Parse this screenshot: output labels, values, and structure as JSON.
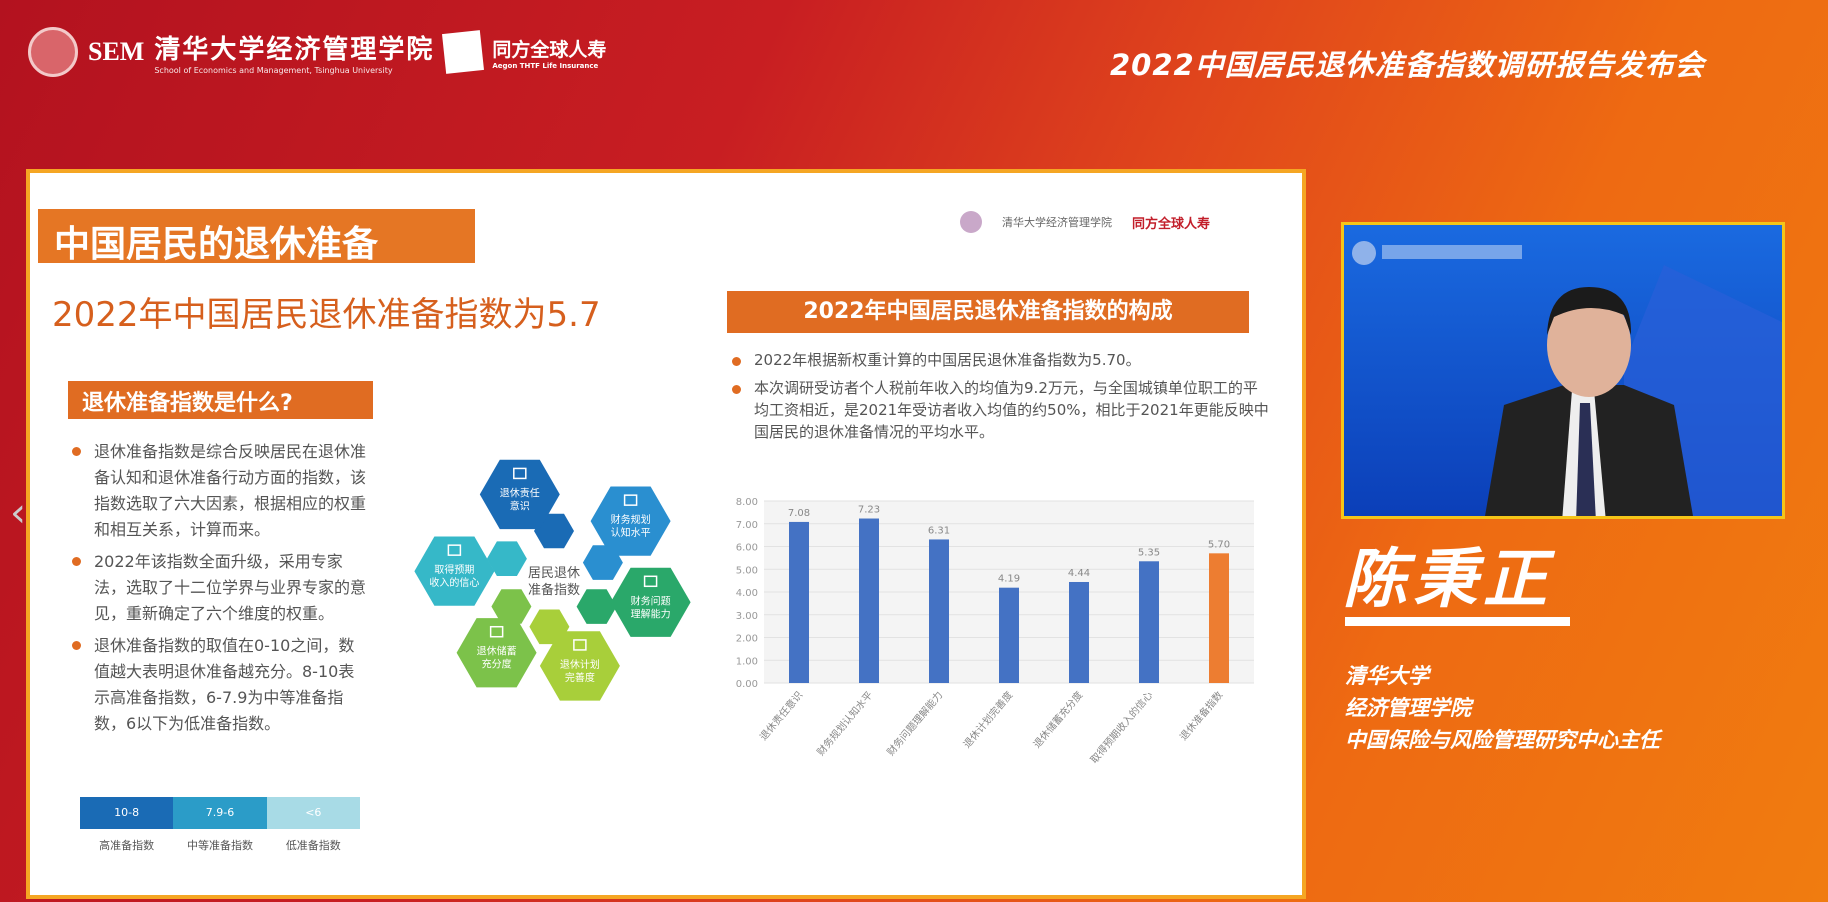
{
  "header": {
    "logo_sem": "SEM",
    "logo_school_cn": "清华大学经济管理学院",
    "logo_school_en": "School of Economics and Management, Tsinghua University",
    "logo_partner_cn": "同方全球人寿",
    "logo_partner_en": "Aegon THTF Life Insurance",
    "event_title": "2022中国居民退休准备指数调研报告发布会"
  },
  "slide": {
    "title": "中国居民的退休准备",
    "subtitle": "2022年中国居民退休准备指数为5.7",
    "what_box": "退休准备指数是什么?",
    "left_bullets": [
      "退休准备指数是综合反映居民在退休准备认知和退休准备行动方面的指数，该指数选取了六大因素，根据相应的权重和相互关系，计算而来。",
      "2022年该指数全面升级，采用专家法，选取了十二位学界与业界专家的意见，重新确定了六个维度的权重。",
      "退休准备指数的取值在0-10之间，数值越大表明退休准备越充分。8-10表示高准备指数，6-7.9为中等准备指数，6以下为低准备指数。"
    ],
    "legend": [
      {
        "range": "10-8",
        "label": "高准备指数",
        "color": "#1a6bb5"
      },
      {
        "range": "7.9-6",
        "label": "中等准备指数",
        "color": "#2b9cc8"
      },
      {
        "range": "<6",
        "label": "低准备指数",
        "color": "#a8dbe6"
      }
    ],
    "hex_center": "居民退休准备指数",
    "hex_items": [
      {
        "label": "退休责任意识",
        "color": "#1a6bb5",
        "icon": "heart-icon"
      },
      {
        "label": "财务规划认知水平",
        "color": "#2a8fd0",
        "icon": "bank-icon"
      },
      {
        "label": "财务问题理解能力",
        "color": "#2aa86a",
        "icon": "document-icon"
      },
      {
        "label": "退休计划完善度",
        "color": "#a8cf3a",
        "icon": "calendar-icon"
      },
      {
        "label": "退休储蓄充分度",
        "color": "#7cc24a",
        "icon": "card-icon"
      },
      {
        "label": "取得预期收入的信心",
        "color": "#36b8c8",
        "icon": "wallet-icon"
      }
    ],
    "composition_title": "2022年中国居民退休准备指数的构成",
    "right_bullets": [
      "2022年根据新权重计算的中国居民退休准备指数为5.70。",
      "本次调研受访者个人税前年收入的均值为9.2万元，与全国城镇单位职工的平均工资相近，是2021年受访者收入均值的约50%，相比于2021年更能反映中国居民的退休准备情况的平均水平。"
    ],
    "slide_logo_school": "清华大学经济管理学院",
    "slide_logo_partner": "同方全球人寿"
  },
  "chart_data": {
    "type": "bar",
    "categories": [
      "退休责任意识",
      "财务规划认知水平",
      "财务问题理解能力",
      "退休计划完善度",
      "退休储蓄充分度",
      "取得预期收入的信心",
      "退休准备指数"
    ],
    "values": [
      7.08,
      7.23,
      6.31,
      4.19,
      4.44,
      5.35,
      5.7
    ],
    "data_labels": [
      "7.08",
      "7.23",
      "6.31",
      "4.19",
      "4.44",
      "5.35",
      "5.70"
    ],
    "colors": [
      "#4472c4",
      "#4472c4",
      "#4472c4",
      "#4472c4",
      "#4472c4",
      "#4472c4",
      "#ed7d31"
    ],
    "ylim": [
      0,
      8
    ],
    "yticks": [
      "0.00",
      "1.00",
      "2.00",
      "3.00",
      "4.00",
      "5.00",
      "6.00",
      "7.00",
      "8.00"
    ],
    "grid": true,
    "xlabel": "",
    "ylabel": ""
  },
  "speaker": {
    "name": "陈秉正",
    "affiliation": [
      "清华大学",
      "经济管理学院",
      "中国保险与风险管理研究中心主任"
    ]
  }
}
